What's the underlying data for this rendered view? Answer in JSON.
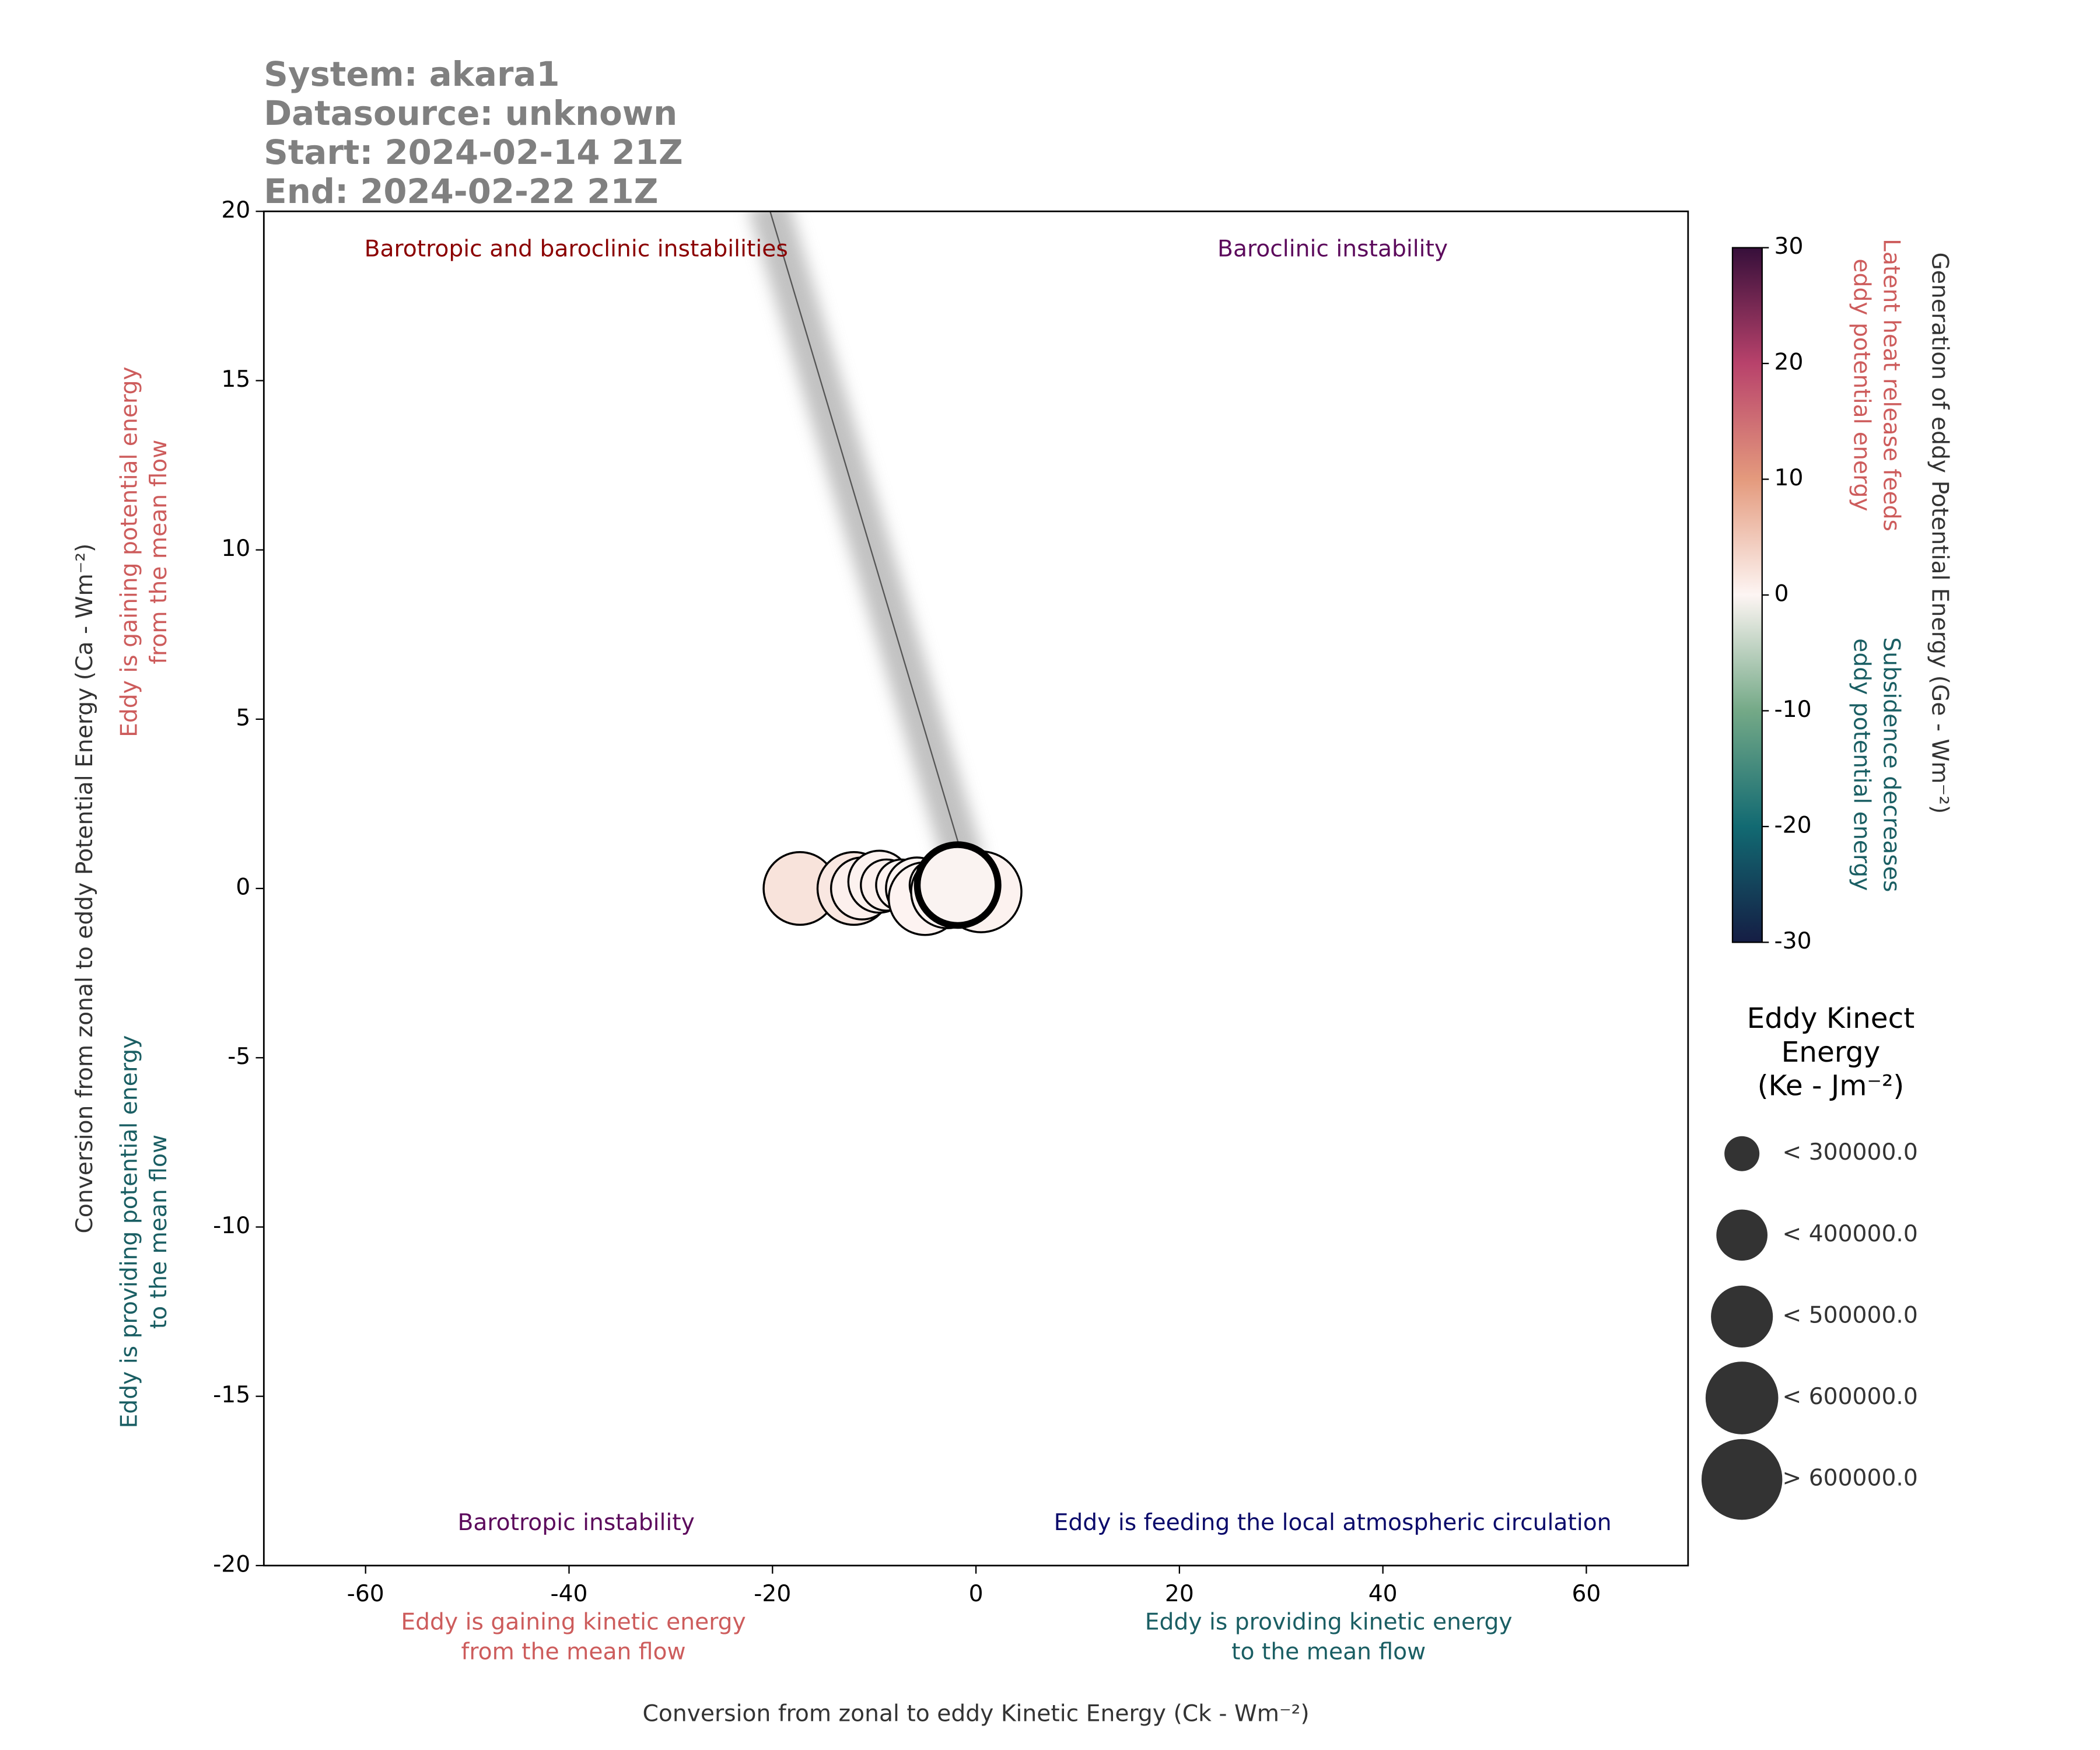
{
  "header": [
    "System: akara1",
    "Datasource: unknown",
    "Start: 2024-02-14 21Z",
    "End: 2024-02-22 21Z"
  ],
  "chart_data": {
    "type": "scatter",
    "x_label": "Conversion from zonal to eddy Kinetic Energy (Ck - Wm⁻²)",
    "y_label": "Conversion from zonal to eddy Potential Energy (Ca - Wm⁻²)",
    "xlim": [
      -70,
      70
    ],
    "ylim": [
      -20,
      20
    ],
    "xticks": [
      -60,
      -40,
      -20,
      0,
      20,
      40,
      60
    ],
    "yticks": [
      -20,
      -15,
      -10,
      -5,
      0,
      5,
      10,
      15,
      20
    ],
    "quadrant_labels": [
      "Barotropic and baroclinic instabilities",
      "Baroclinic instability",
      "Barotropic instability",
      "Eddy is feeding the local atmospheric circulation"
    ],
    "x_notes": [
      [
        "Eddy is gaining kinetic energy",
        "from the mean flow"
      ],
      [
        "Eddy is providing kinetic energy",
        "to the mean flow"
      ]
    ],
    "y_notes": [
      [
        "Eddy is gaining potential energy",
        "from the mean flow"
      ],
      [
        "Eddy is providing potential energy",
        "to the mean flow"
      ]
    ],
    "x": [
      -17.3,
      -12,
      -11.5,
      -11.2,
      -9.5,
      -8.8,
      -7.3,
      -5.8,
      -5,
      -4,
      -3,
      -2.8,
      -2.5,
      -1.5,
      0.5,
      -1.8
    ],
    "values": [
      0,
      0,
      0.1,
      0,
      0.2,
      0.1,
      0.1,
      0,
      -0.3,
      0.1,
      0,
      -0.1,
      0.1,
      0.2,
      -0.1,
      0.1
    ],
    "ge": [
      2,
      1.5,
      1,
      0.5,
      0.3,
      0.5,
      0.2,
      0.1,
      0.2,
      0,
      0.1,
      0.2,
      0.1,
      0.1,
      0.3,
      -0.2
    ],
    "ke": [
      550000,
      520000,
      280000,
      420000,
      480000,
      350000,
      380000,
      420000,
      560000,
      380000,
      450000,
      530000,
      350000,
      470000,
      620000,
      650000
    ],
    "colorbar": {
      "label": "Generation of eddy Potential Energy (Ge - Wm⁻²)",
      "lim": [
        -30,
        30
      ],
      "ticks": [
        -30,
        -20,
        -10,
        0,
        10,
        20,
        30
      ],
      "notes": [
        [
          "Latent heat release feeds",
          "eddy potential energy"
        ],
        [
          "Subsidence decreases",
          "eddy potential energy"
        ]
      ]
    },
    "size_legend": {
      "title": [
        "Eddy Kinect",
        "Energy",
        "(Ke - Jm⁻²)"
      ],
      "items": [
        {
          "value": 300000,
          "label": "< 300000.0"
        },
        {
          "value": 400000,
          "label": "< 400000.0"
        },
        {
          "value": 500000,
          "label": "< 500000.0"
        },
        {
          "value": 600000,
          "label": "< 600000.0"
        },
        {
          "value": 600000,
          "label": "> 600000.0"
        }
      ]
    }
  }
}
